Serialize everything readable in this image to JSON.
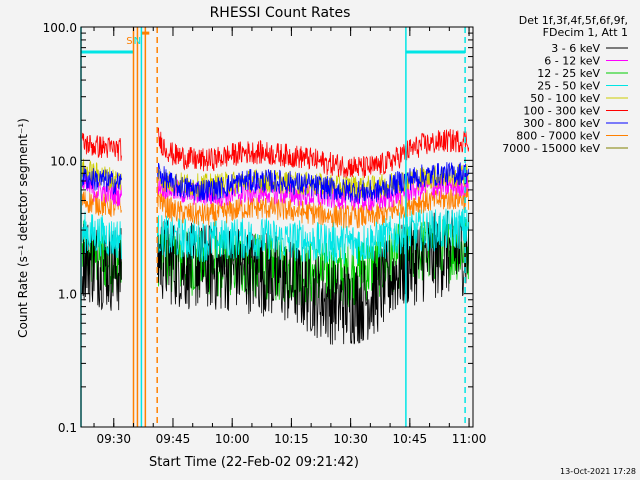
{
  "chart_data": {
    "type": "line",
    "title": "RHESSI Count Rates",
    "xlabel": "Start Time (22-Feb-02 09:21:42)",
    "ylabel": "Count Rate (s⁻¹ detector segment⁻¹)",
    "y_scale": "log",
    "ylim": [
      0.1,
      100.0
    ],
    "xlim": [
      "09:21:42",
      "11:01:00"
    ],
    "x_ticks": [
      "09:30",
      "09:45",
      "10:00",
      "10:15",
      "10:30",
      "10:45",
      "11:00"
    ],
    "y_ticks": [
      "0.1",
      "1.0",
      "10.0",
      "100.0"
    ],
    "grid": false,
    "legend": {
      "placement": "right",
      "header": [
        "Det 1f,3f,4f,5f,6f,9f,",
        "FDecim 1, Att 1"
      ]
    },
    "series": [
      {
        "name": "3 - 6 keV",
        "color": "#000000",
        "x": [
          "09:22",
          "09:25",
          "09:28",
          "09:30",
          "09:32",
          "09:41",
          "09:43",
          "09:45",
          "09:48",
          "09:51",
          "09:54",
          "09:57",
          "10:00",
          "10:03",
          "10:06",
          "10:09",
          "10:12",
          "10:15",
          "10:18",
          "10:21",
          "10:24",
          "10:27",
          "10:30",
          "10:33",
          "10:36",
          "10:39",
          "10:42",
          "10:45",
          "10:48",
          "10:51",
          "10:54",
          "10:57",
          "11:00"
        ],
        "values": [
          1.9,
          1.7,
          1.6,
          1.5,
          1.5,
          1.9,
          1.8,
          1.7,
          1.6,
          1.6,
          1.6,
          1.5,
          1.6,
          1.5,
          1.5,
          1.4,
          1.3,
          1.2,
          1.1,
          1.0,
          0.9,
          0.85,
          0.85,
          0.9,
          1.0,
          1.2,
          1.5,
          1.7,
          1.8,
          1.9,
          2.0,
          2.0,
          2.1
        ]
      },
      {
        "name": "6 - 12 keV",
        "color": "#ff00ff",
        "x": [
          "09:22",
          "09:25",
          "09:28",
          "09:30",
          "09:32",
          "09:41",
          "09:43",
          "09:45",
          "09:48",
          "09:51",
          "09:54",
          "09:57",
          "10:00",
          "10:03",
          "10:06",
          "10:09",
          "10:12",
          "10:15",
          "10:18",
          "10:21",
          "10:24",
          "10:27",
          "10:30",
          "10:33",
          "10:36",
          "10:39",
          "10:42",
          "10:45",
          "10:48",
          "10:51",
          "10:54",
          "10:57",
          "11:00"
        ],
        "values": [
          6.5,
          6.0,
          5.8,
          5.6,
          5.5,
          6.8,
          6.3,
          6.0,
          5.7,
          5.6,
          5.5,
          5.5,
          5.6,
          5.7,
          5.8,
          5.8,
          5.7,
          5.6,
          5.5,
          5.4,
          5.3,
          5.3,
          5.2,
          5.1,
          5.0,
          5.2,
          5.6,
          6.0,
          6.2,
          6.3,
          6.4,
          6.5,
          6.6
        ]
      },
      {
        "name": "12 - 25 keV",
        "color": "#00cc00",
        "x": [
          "09:22",
          "09:25",
          "09:28",
          "09:30",
          "09:32",
          "09:41",
          "09:43",
          "09:45",
          "09:48",
          "09:51",
          "09:54",
          "09:57",
          "10:00",
          "10:03",
          "10:06",
          "10:09",
          "10:12",
          "10:15",
          "10:18",
          "10:21",
          "10:24",
          "10:27",
          "10:30",
          "10:33",
          "10:36",
          "10:39",
          "10:42",
          "10:45",
          "10:48",
          "10:51",
          "10:54",
          "10:57",
          "11:00"
        ],
        "values": [
          2.0,
          1.9,
          1.8,
          1.8,
          1.7,
          2.0,
          1.9,
          1.8,
          1.7,
          1.7,
          1.7,
          1.6,
          1.7,
          1.7,
          1.6,
          1.6,
          1.5,
          1.5,
          1.4,
          1.4,
          1.4,
          1.4,
          1.4,
          1.5,
          1.6,
          1.7,
          1.9,
          2.0,
          2.1,
          2.1,
          2.1,
          2.2,
          2.2
        ]
      },
      {
        "name": "25 - 50 keV",
        "color": "#00e5e5",
        "x": [
          "09:22",
          "09:25",
          "09:28",
          "09:30",
          "09:32",
          "09:41",
          "09:43",
          "09:45",
          "09:48",
          "09:51",
          "09:54",
          "09:57",
          "10:00",
          "10:03",
          "10:06",
          "10:09",
          "10:12",
          "10:15",
          "10:18",
          "10:21",
          "10:24",
          "10:27",
          "10:30",
          "10:33",
          "10:36",
          "10:39",
          "10:42",
          "10:45",
          "10:48",
          "10:51",
          "10:54",
          "10:57",
          "11:00"
        ],
        "values": [
          2.9,
          2.8,
          2.7,
          2.6,
          2.6,
          2.8,
          2.7,
          2.6,
          2.6,
          2.5,
          2.5,
          2.5,
          2.6,
          2.6,
          2.6,
          2.6,
          2.5,
          2.5,
          2.5,
          2.4,
          2.4,
          2.4,
          2.4,
          2.4,
          2.5,
          2.6,
          2.8,
          2.9,
          3.0,
          3.0,
          3.0,
          3.1,
          3.1
        ]
      },
      {
        "name": "50 - 100 keV",
        "color": "#cccc00",
        "x": [
          "09:22",
          "09:25",
          "09:28",
          "09:30",
          "09:32",
          "09:41",
          "09:43",
          "09:45",
          "09:48",
          "09:51",
          "09:54",
          "09:57",
          "10:00",
          "10:03",
          "10:06",
          "10:09",
          "10:12",
          "10:15",
          "10:18",
          "10:21",
          "10:24",
          "10:27",
          "10:30",
          "10:33",
          "10:36",
          "10:39",
          "10:42",
          "10:45",
          "10:48",
          "10:51",
          "10:54",
          "10:57",
          "11:00"
        ],
        "values": [
          8.5,
          8.0,
          7.5,
          7.2,
          7.0,
          7.5,
          7.0,
          6.8,
          6.6,
          6.5,
          6.5,
          6.6,
          6.8,
          7.0,
          7.0,
          7.0,
          6.9,
          6.8,
          6.7,
          6.6,
          6.5,
          6.5,
          6.4,
          6.3,
          6.3,
          6.5,
          6.9,
          7.2,
          7.4,
          7.5,
          7.6,
          7.6,
          7.7
        ]
      },
      {
        "name": "100 - 300 keV",
        "color": "#ff0000",
        "x": [
          "09:22",
          "09:25",
          "09:28",
          "09:30",
          "09:32",
          "09:41",
          "09:43",
          "09:45",
          "09:48",
          "09:51",
          "09:54",
          "09:57",
          "10:00",
          "10:03",
          "10:06",
          "10:09",
          "10:12",
          "10:15",
          "10:18",
          "10:21",
          "10:24",
          "10:27",
          "10:30",
          "10:33",
          "10:36",
          "10:39",
          "10:42",
          "10:45",
          "10:48",
          "10:51",
          "10:54",
          "10:57",
          "11:00"
        ],
        "values": [
          13.5,
          12.8,
          12.5,
          12.2,
          12.0,
          15.0,
          12.5,
          11.0,
          10.5,
          10.0,
          10.0,
          10.5,
          11.0,
          11.5,
          11.5,
          11.3,
          11.0,
          10.8,
          10.5,
          10.0,
          9.5,
          9.2,
          9.0,
          8.8,
          8.9,
          9.5,
          10.5,
          12.0,
          13.0,
          13.5,
          14.0,
          14.0,
          14.2
        ]
      },
      {
        "name": "300 - 800 keV",
        "color": "#0000ff",
        "x": [
          "09:22",
          "09:25",
          "09:28",
          "09:30",
          "09:32",
          "09:41",
          "09:43",
          "09:45",
          "09:48",
          "09:51",
          "09:54",
          "09:57",
          "10:00",
          "10:03",
          "10:06",
          "10:09",
          "10:12",
          "10:15",
          "10:18",
          "10:21",
          "10:24",
          "10:27",
          "10:30",
          "10:33",
          "10:36",
          "10:39",
          "10:42",
          "10:45",
          "10:48",
          "10:51",
          "10:54",
          "10:57",
          "11:00"
        ],
        "values": [
          7.5,
          7.2,
          7.0,
          6.8,
          6.8,
          8.5,
          7.2,
          6.5,
          6.2,
          6.0,
          6.0,
          6.2,
          6.6,
          7.0,
          7.0,
          7.0,
          6.9,
          6.8,
          6.6,
          6.4,
          6.2,
          6.0,
          5.9,
          5.8,
          5.8,
          6.2,
          6.8,
          7.3,
          7.6,
          7.8,
          7.9,
          8.0,
          8.0
        ]
      },
      {
        "name": "800 - 7000 keV",
        "color": "#ff8000",
        "x": [
          "09:22",
          "09:25",
          "09:28",
          "09:30",
          "09:32",
          "09:41",
          "09:43",
          "09:45",
          "09:48",
          "09:51",
          "09:54",
          "09:57",
          "10:00",
          "10:03",
          "10:06",
          "10:09",
          "10:12",
          "10:15",
          "10:18",
          "10:21",
          "10:24",
          "10:27",
          "10:30",
          "10:33",
          "10:36",
          "10:39",
          "10:42",
          "10:45",
          "10:48",
          "10:51",
          "10:54",
          "10:57",
          "11:00"
        ],
        "values": [
          5.0,
          4.8,
          4.6,
          4.5,
          4.5,
          5.5,
          4.6,
          4.2,
          4.0,
          3.9,
          3.9,
          4.0,
          4.2,
          4.4,
          4.4,
          4.4,
          4.3,
          4.2,
          4.1,
          4.0,
          3.9,
          3.8,
          3.8,
          3.8,
          3.8,
          4.0,
          4.4,
          4.7,
          4.9,
          5.0,
          5.1,
          5.2,
          5.2
        ]
      },
      {
        "name": "7000 - 15000 keV",
        "color": "#808000",
        "x": [],
        "values": []
      }
    ],
    "annotations": [
      {
        "text": "S",
        "color": "#ff8000",
        "x": "09:36"
      },
      {
        "text": "N",
        "color": "#00e5e5",
        "x": "09:38"
      }
    ],
    "attenuator_bars": [
      {
        "from": "09:21:42",
        "to": "09:35",
        "value": 65,
        "color": "#00e5e5"
      },
      {
        "from": "10:44",
        "to": "10:59",
        "value": 65,
        "color": "#00e5e5"
      },
      {
        "from": "09:37",
        "to": "09:39",
        "value": 90,
        "color": "#ff8000"
      }
    ],
    "vlines": [
      {
        "x": "09:21:42",
        "color": "#00e5e5",
        "style": "solid"
      },
      {
        "x": "09:35",
        "color": "#ff8000",
        "style": "solid"
      },
      {
        "x": "09:36",
        "color": "#ff8000",
        "style": "solid"
      },
      {
        "x": "09:37",
        "color": "#00e5e5",
        "style": "solid"
      },
      {
        "x": "09:38",
        "color": "#ff8000",
        "style": "solid"
      },
      {
        "x": "09:41",
        "color": "#ff8000",
        "style": "dashed"
      },
      {
        "x": "10:44",
        "color": "#00e5e5",
        "style": "solid"
      },
      {
        "x": "10:59",
        "color": "#00e5e5",
        "style": "dashed"
      }
    ]
  },
  "footer": {
    "date_stamp": "13-Oct-2021 17:28"
  }
}
